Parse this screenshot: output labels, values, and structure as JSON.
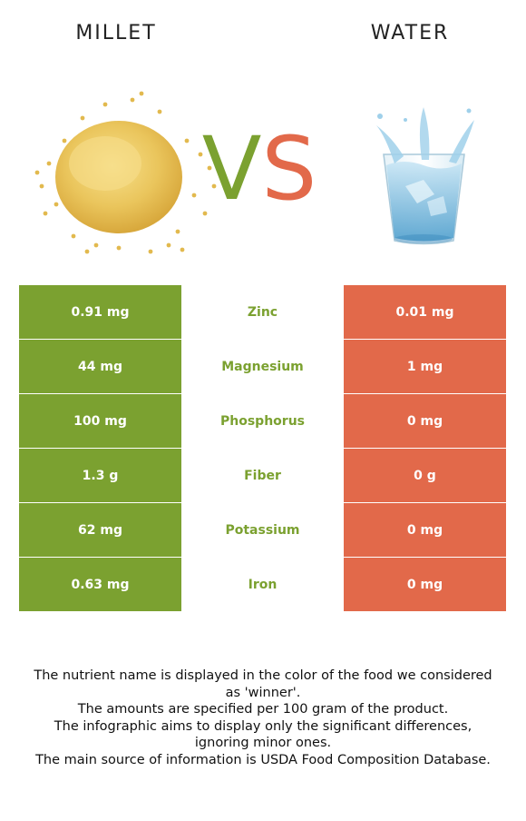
{
  "header": {
    "left_food": "MILLET",
    "right_food": "WATER"
  },
  "vs_label": "VS",
  "colors": {
    "winner_green": "#7ba130",
    "loser_red": "#e2694a"
  },
  "icons": {
    "left": "millet-grains-icon",
    "right": "water-glass-icon"
  },
  "rows": [
    {
      "left": "0.91 mg",
      "nutrient": "Zinc",
      "right": "0.01 mg"
    },
    {
      "left": "44 mg",
      "nutrient": "Magnesium",
      "right": "1 mg"
    },
    {
      "left": "100 mg",
      "nutrient": "Phosphorus",
      "right": "0 mg"
    },
    {
      "left": "1.3 g",
      "nutrient": "Fiber",
      "right": "0 g"
    },
    {
      "left": "62 mg",
      "nutrient": "Potassium",
      "right": "0 mg"
    },
    {
      "left": "0.63 mg",
      "nutrient": "Iron",
      "right": "0 mg"
    }
  ],
  "footnotes": [
    "The nutrient name is displayed in the color of the food we considered as 'winner'.",
    "The amounts are specified per 100 gram of the product.",
    "The infographic aims to display only the significant differences, ignoring minor ones.",
    "The main source of information is USDA Food Composition Database."
  ]
}
